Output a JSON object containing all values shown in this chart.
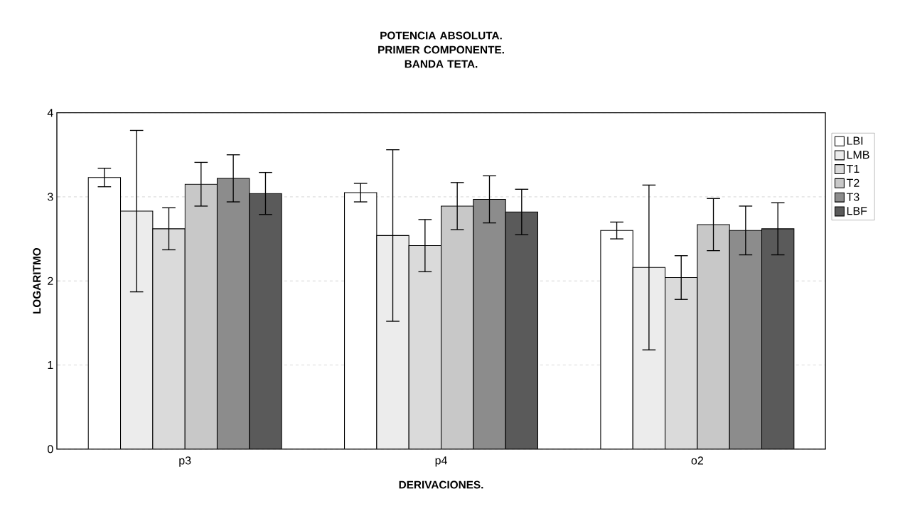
{
  "chart_data": {
    "type": "bar",
    "title": "POTENCIA ABSOLUTA. PRIMER COMPONENTE. BANDA TETA.",
    "xlabel": "DERIVACIONES.",
    "ylabel": "LOGARITMO",
    "categories": [
      "p3",
      "p4",
      "o2"
    ],
    "series": [
      {
        "name": "LBI",
        "color": "#ffffff",
        "values": [
          3.23,
          3.05,
          2.6
        ],
        "errors": [
          0.11,
          0.11,
          0.1
        ]
      },
      {
        "name": "LMB",
        "color": "#ececec",
        "values": [
          2.83,
          2.54,
          2.16
        ],
        "errors": [
          0.96,
          1.02,
          0.98
        ]
      },
      {
        "name": "T1",
        "color": "#dadada",
        "values": [
          2.62,
          2.42,
          2.04
        ],
        "errors": [
          0.25,
          0.31,
          0.26
        ]
      },
      {
        "name": "T2",
        "color": "#c8c8c8",
        "values": [
          3.15,
          2.89,
          2.67
        ],
        "errors": [
          0.26,
          0.28,
          0.31
        ]
      },
      {
        "name": "T3",
        "color": "#8c8c8c",
        "values": [
          3.22,
          2.97,
          2.6
        ],
        "errors": [
          0.28,
          0.28,
          0.29
        ]
      },
      {
        "name": "LBF",
        "color": "#5a5a5a",
        "values": [
          3.04,
          2.82,
          2.62
        ],
        "errors": [
          0.25,
          0.27,
          0.31
        ]
      }
    ],
    "ylim": [
      0,
      4
    ],
    "yticks": [
      0,
      1,
      2,
      3,
      4
    ],
    "grid": "y",
    "legend": "right"
  }
}
